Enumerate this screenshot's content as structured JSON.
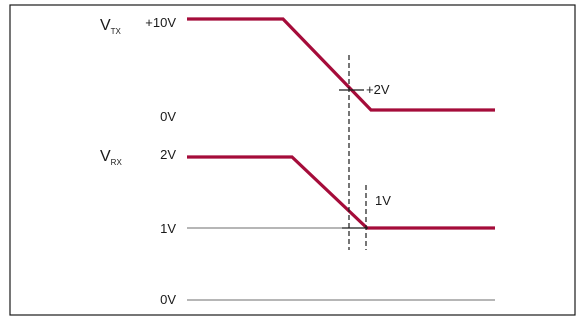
{
  "diagram": {
    "colors": {
      "trace": "#a50c3a",
      "reference_line": "#6e6e6e",
      "text": "#1a1a1a",
      "frame": "#1a1a1a"
    },
    "tx": {
      "signal_main": "V",
      "signal_sub": "TX",
      "high_level": "+10V",
      "low_level": "0V",
      "threshold_label": "+2V"
    },
    "rx": {
      "signal_main": "V",
      "signal_sub": "RX",
      "high_level": "2V",
      "threshold_level": "1V",
      "ground_level": "0V",
      "threshold_label": "1V"
    }
  }
}
